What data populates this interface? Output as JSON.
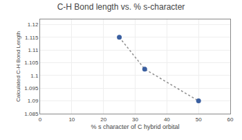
{
  "chart_data": {
    "type": "scatter",
    "title": "C-H Bond length vs. % s-character",
    "xlabel": "% s character of C hybrid orbital",
    "ylabel": "Calculated C-H Bond Length",
    "x": [
      25,
      33,
      50
    ],
    "series": [
      {
        "type": "line",
        "line_style": "dotted",
        "color": "#8c8c8c",
        "values": [
          1.115,
          1.1025,
          1.09
        ]
      },
      {
        "type": "scatter",
        "marker": "circle",
        "color": "#3a5fa0",
        "values": [
          1.115,
          1.1025,
          1.09
        ]
      }
    ],
    "xlim": [
      0,
      60
    ],
    "ylim": [
      1.085,
      1.122
    ],
    "xticks": [
      0,
      10,
      20,
      30,
      40,
      50,
      60
    ],
    "yticks": [
      1.085,
      1.09,
      1.095,
      1.1,
      1.105,
      1.11,
      1.115,
      1.12
    ],
    "grid": true
  }
}
